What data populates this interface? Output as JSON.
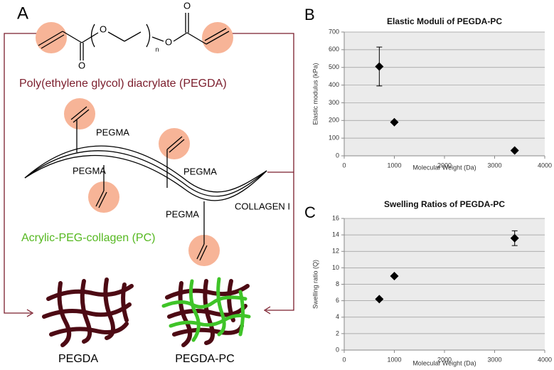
{
  "panels": [
    "A",
    "B",
    "C"
  ],
  "diagram": {
    "atoms": [
      "O",
      "O",
      "O",
      "O"
    ],
    "subscript": "n",
    "pegda_name": "Poly(ethylene glycol) diacrylate (PEGDA)",
    "pegma_labels": [
      "PEGMA",
      "PEGMA",
      "PEGMA",
      "PEGMA"
    ],
    "collagen_label": "COLLAGEN I",
    "pc_name": "Acrylic-PEG-collagen (PC)",
    "network_labels": [
      "PEGDA",
      "PEGDA-PC"
    ]
  },
  "chart_data": [
    {
      "type": "scatter",
      "title": "Elastic Moduli of PEGDA-PC",
      "x_label": "Molecular Weight (Da)",
      "y_label": "Elastic modulus (kPa)",
      "x": [
        700,
        1000,
        3400
      ],
      "values": [
        505,
        190,
        30
      ],
      "errors": [
        110,
        null,
        null
      ],
      "color": "#000000",
      "xlim": [
        0,
        4000
      ],
      "xticks": [
        0,
        1000,
        2000,
        3000,
        4000
      ],
      "ylim": [
        0,
        700
      ],
      "yticks": [
        0,
        100,
        200,
        300,
        400,
        500,
        600,
        700
      ],
      "grid": true
    },
    {
      "type": "scatter",
      "title": "Swelling Ratios of PEGDA-PC",
      "x_label": "Molecular Weight (Da)",
      "y_label": "Swelling ratio (Q)",
      "x": [
        700,
        1000,
        3400
      ],
      "values": [
        6.2,
        9.0,
        13.6
      ],
      "errors": [
        null,
        null,
        0.9
      ],
      "color": "#000000",
      "xlim": [
        0,
        4000
      ],
      "xticks": [
        0,
        1000,
        2000,
        3000,
        4000
      ],
      "ylim": [
        0,
        16
      ],
      "yticks": [
        0,
        2,
        4,
        6,
        8,
        10,
        12,
        14,
        16
      ],
      "grid": true
    }
  ]
}
